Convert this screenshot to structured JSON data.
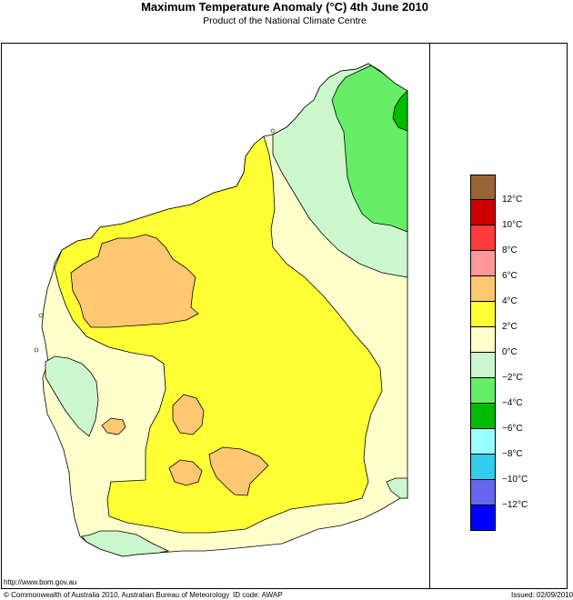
{
  "header": {
    "title": "Maximum Temperature Anomaly (°C)  4th June 2010",
    "subtitle": "Product of the National Climate Centre"
  },
  "legend": {
    "swatches": [
      {
        "color": "#9b6434"
      },
      {
        "color": "#cc0000"
      },
      {
        "color": "#ff3b3b"
      },
      {
        "color": "#ff9999"
      },
      {
        "color": "#ffc772"
      },
      {
        "color": "#ffff33"
      },
      {
        "color": "#ffffcc"
      },
      {
        "color": "#ccf7cc"
      },
      {
        "color": "#66ee66"
      },
      {
        "color": "#00bb00"
      },
      {
        "color": "#99ffff"
      },
      {
        "color": "#33ccee"
      },
      {
        "color": "#6666ee"
      },
      {
        "color": "#0000ff"
      }
    ],
    "labels": [
      "12°C",
      "10°C",
      "8°C",
      "6°C",
      "4°C",
      "2°C",
      "0°C",
      "−2°C",
      "−4°C",
      "−6°C",
      "−8°C",
      "−10°C",
      "−12°C"
    ]
  },
  "map": {
    "colors": {
      "land_neutral": "#ffffcc",
      "warm_2_4": "#ffff33",
      "warm_4_6": "#ffc772",
      "cool_0_2": "#ccf7cc",
      "cool_2_4": "#66ee66",
      "cool_4_6": "#00bb00",
      "sea": "#ffffff"
    }
  },
  "footer": {
    "url": "http://www.bom.gov.au",
    "copyright": "© Commonwealth of Australia 2010, Australian Bureau of Meteorology",
    "id_code": "ID code: AWAP",
    "issued": "Issued: 02/09/2010"
  }
}
